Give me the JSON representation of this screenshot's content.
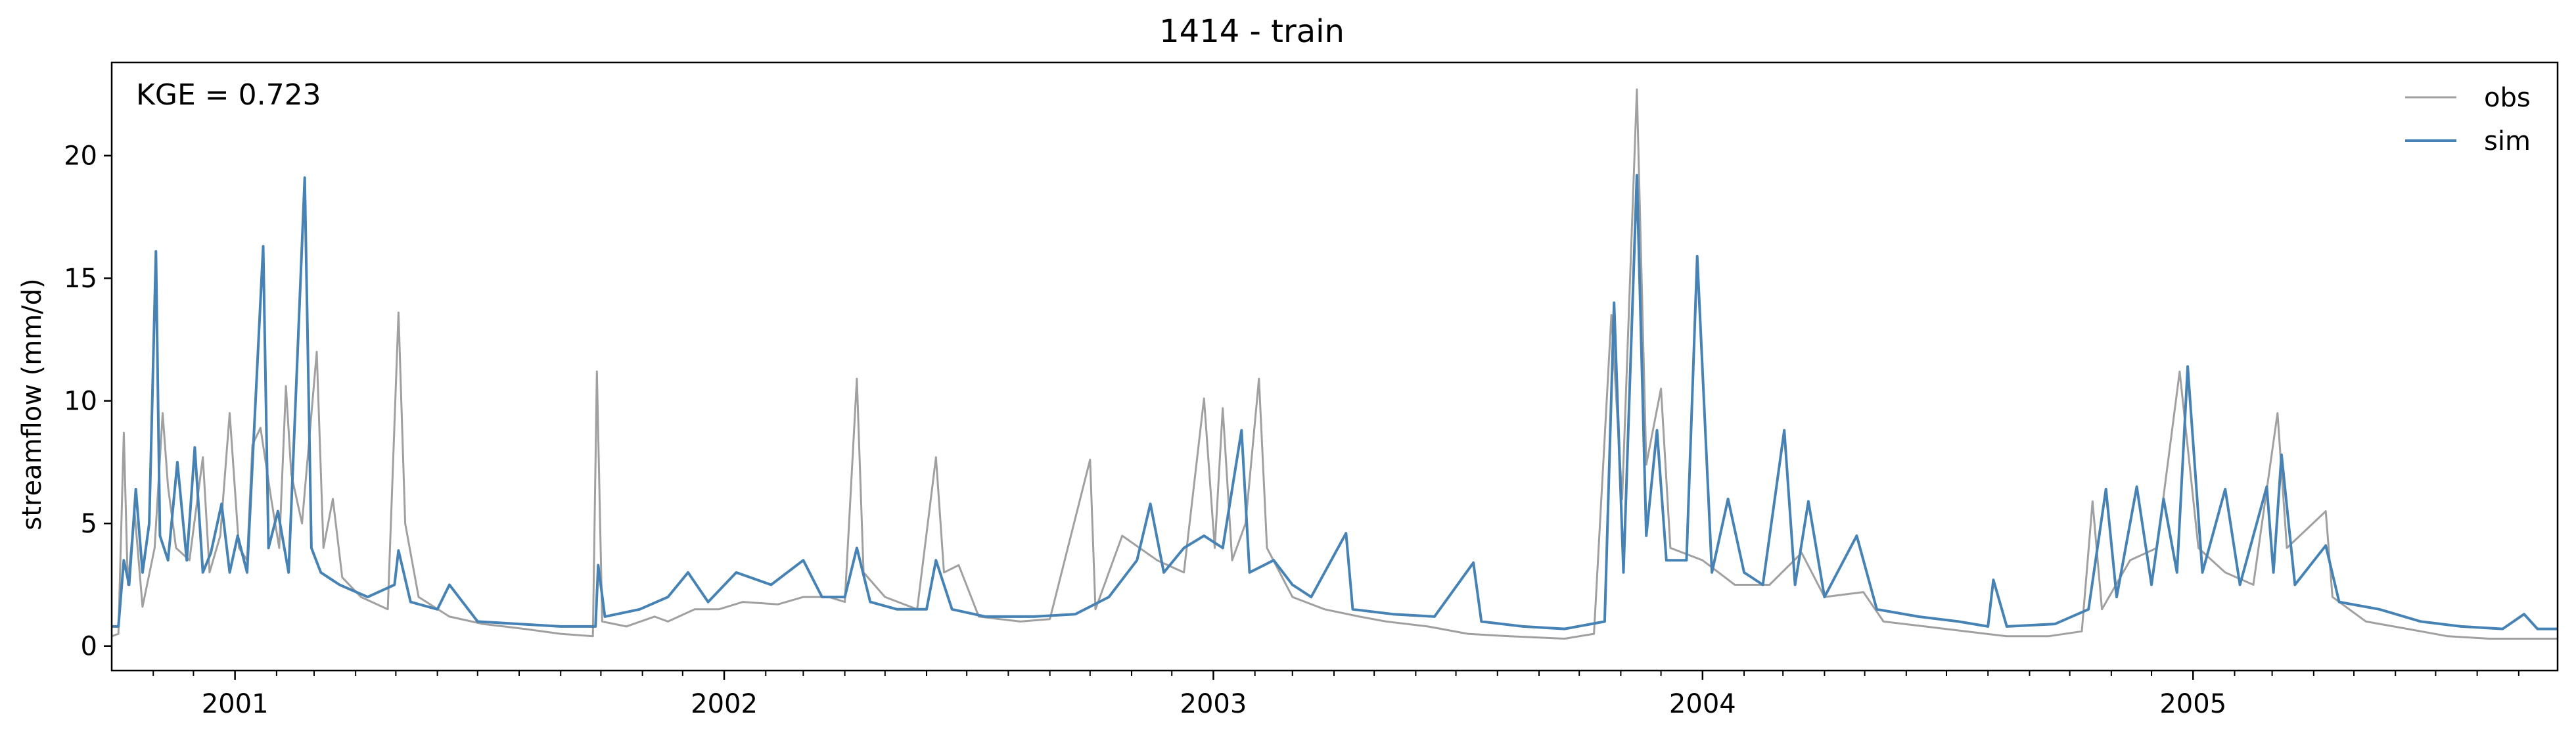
{
  "chart_data": {
    "type": "line",
    "title": "1414 - train",
    "xlabel": "",
    "ylabel": "streamflow (mm/d)",
    "annotation": "KGE = 0.723",
    "x_range": [
      "2000-10-01",
      "2005-09-30"
    ],
    "ylim": [
      -1.0,
      23.8
    ],
    "yticks": [
      0,
      5,
      10,
      15,
      20
    ],
    "xticks": [
      {
        "date": "2001-01-01",
        "label": "2001"
      },
      {
        "date": "2002-01-01",
        "label": "2002"
      },
      {
        "date": "2003-01-01",
        "label": "2003"
      },
      {
        "date": "2004-01-01",
        "label": "2004"
      },
      {
        "date": "2005-01-01",
        "label": "2005"
      }
    ],
    "grid": false,
    "legend_position": "top-right",
    "series": [
      {
        "name": "obs",
        "color": "#a0a0a0",
        "points": [
          [
            "2000-10-01",
            0.4
          ],
          [
            "2000-10-06",
            0.5
          ],
          [
            "2000-10-10",
            8.7
          ],
          [
            "2000-10-13",
            2.5
          ],
          [
            "2000-10-18",
            5.5
          ],
          [
            "2000-10-24",
            1.6
          ],
          [
            "2000-11-02",
            4.0
          ],
          [
            "2000-11-08",
            9.5
          ],
          [
            "2000-11-12",
            6.5
          ],
          [
            "2000-11-18",
            4.0
          ],
          [
            "2000-11-28",
            3.5
          ],
          [
            "2000-12-08",
            7.7
          ],
          [
            "2000-12-13",
            3.0
          ],
          [
            "2000-12-21",
            4.5
          ],
          [
            "2000-12-28",
            9.5
          ],
          [
            "2001-01-04",
            4.0
          ],
          [
            "2001-01-10",
            3.5
          ],
          [
            "2001-01-14",
            8.2
          ],
          [
            "2001-01-20",
            8.9
          ],
          [
            "2001-01-28",
            6.0
          ],
          [
            "2001-02-03",
            4.0
          ],
          [
            "2001-02-08",
            10.6
          ],
          [
            "2001-02-12",
            7.0
          ],
          [
            "2001-02-20",
            5.0
          ],
          [
            "2001-03-03",
            12.0
          ],
          [
            "2001-03-08",
            4.0
          ],
          [
            "2001-03-15",
            6.0
          ],
          [
            "2001-03-22",
            2.8
          ],
          [
            "2001-04-05",
            2.0
          ],
          [
            "2001-04-25",
            1.5
          ],
          [
            "2001-05-03",
            13.6
          ],
          [
            "2001-05-08",
            5.0
          ],
          [
            "2001-05-18",
            2.0
          ],
          [
            "2001-06-10",
            1.2
          ],
          [
            "2001-07-05",
            0.9
          ],
          [
            "2001-08-05",
            0.7
          ],
          [
            "2001-09-01",
            0.5
          ],
          [
            "2001-09-25",
            0.4
          ],
          [
            "2001-09-28",
            11.2
          ],
          [
            "2001-10-02",
            1.0
          ],
          [
            "2001-10-20",
            0.8
          ],
          [
            "2001-11-10",
            1.2
          ],
          [
            "2001-11-20",
            1.0
          ],
          [
            "2001-12-10",
            1.5
          ],
          [
            "2001-12-28",
            1.5
          ],
          [
            "2002-01-15",
            1.8
          ],
          [
            "2002-02-10",
            1.7
          ],
          [
            "2002-03-01",
            2.0
          ],
          [
            "2002-03-20",
            2.0
          ],
          [
            "2002-04-01",
            1.8
          ],
          [
            "2002-04-10",
            10.9
          ],
          [
            "2002-04-15",
            3.0
          ],
          [
            "2002-05-01",
            2.0
          ],
          [
            "2002-05-25",
            1.5
          ],
          [
            "2002-06-08",
            7.7
          ],
          [
            "2002-06-14",
            3.0
          ],
          [
            "2002-06-25",
            3.3
          ],
          [
            "2002-07-10",
            1.2
          ],
          [
            "2002-08-10",
            1.0
          ],
          [
            "2002-09-01",
            1.1
          ],
          [
            "2002-10-01",
            7.6
          ],
          [
            "2002-10-05",
            1.5
          ],
          [
            "2002-10-25",
            4.5
          ],
          [
            "2002-11-20",
            3.5
          ],
          [
            "2002-12-10",
            3.0
          ],
          [
            "2002-12-25",
            10.1
          ],
          [
            "2003-01-02",
            4.0
          ],
          [
            "2003-01-08",
            9.7
          ],
          [
            "2003-01-15",
            3.5
          ],
          [
            "2003-01-25",
            5.0
          ],
          [
            "2003-02-04",
            10.9
          ],
          [
            "2003-02-10",
            4.0
          ],
          [
            "2003-03-01",
            2.0
          ],
          [
            "2003-03-25",
            1.5
          ],
          [
            "2003-04-20",
            1.2
          ],
          [
            "2003-05-10",
            1.0
          ],
          [
            "2003-06-10",
            0.8
          ],
          [
            "2003-07-10",
            0.5
          ],
          [
            "2003-08-10",
            0.4
          ],
          [
            "2003-09-20",
            0.3
          ],
          [
            "2003-10-12",
            0.5
          ],
          [
            "2003-10-25",
            13.5
          ],
          [
            "2003-11-02",
            6.0
          ],
          [
            "2003-11-13",
            22.7
          ],
          [
            "2003-11-20",
            7.4
          ],
          [
            "2003-12-01",
            10.5
          ],
          [
            "2003-12-08",
            4.0
          ],
          [
            "2004-01-01",
            3.5
          ],
          [
            "2004-01-25",
            2.5
          ],
          [
            "2004-02-20",
            2.5
          ],
          [
            "2004-03-15",
            3.8
          ],
          [
            "2004-04-01",
            2.0
          ],
          [
            "2004-04-30",
            2.2
          ],
          [
            "2004-05-15",
            1.0
          ],
          [
            "2004-06-15",
            0.8
          ],
          [
            "2004-07-15",
            0.6
          ],
          [
            "2004-08-15",
            0.4
          ],
          [
            "2004-09-15",
            0.4
          ],
          [
            "2004-10-10",
            0.6
          ],
          [
            "2004-10-18",
            5.9
          ],
          [
            "2004-10-25",
            1.5
          ],
          [
            "2004-11-15",
            3.5
          ],
          [
            "2004-12-05",
            4.0
          ],
          [
            "2004-12-22",
            11.2
          ],
          [
            "2005-01-05",
            4.0
          ],
          [
            "2005-01-25",
            3.0
          ],
          [
            "2005-02-15",
            2.5
          ],
          [
            "2005-03-05",
            9.5
          ],
          [
            "2005-03-12",
            4.0
          ],
          [
            "2005-04-10",
            5.5
          ],
          [
            "2005-04-15",
            2.0
          ],
          [
            "2005-05-10",
            1.0
          ],
          [
            "2005-06-10",
            0.7
          ],
          [
            "2005-07-10",
            0.4
          ],
          [
            "2005-08-10",
            0.3
          ],
          [
            "2005-09-10",
            0.3
          ],
          [
            "2005-09-30",
            0.3
          ]
        ]
      },
      {
        "name": "sim",
        "color": "#4682b4",
        "points": [
          [
            "2000-10-01",
            0.8
          ],
          [
            "2000-10-06",
            0.8
          ],
          [
            "2000-10-10",
            3.5
          ],
          [
            "2000-10-14",
            2.5
          ],
          [
            "2000-10-19",
            6.4
          ],
          [
            "2000-10-24",
            3.0
          ],
          [
            "2000-10-29",
            5.0
          ],
          [
            "2000-11-03",
            16.1
          ],
          [
            "2000-11-06",
            4.5
          ],
          [
            "2000-11-12",
            3.5
          ],
          [
            "2000-11-19",
            7.5
          ],
          [
            "2000-11-26",
            3.5
          ],
          [
            "2000-12-02",
            8.1
          ],
          [
            "2000-12-08",
            3.0
          ],
          [
            "2000-12-14",
            3.8
          ],
          [
            "2000-12-22",
            5.8
          ],
          [
            "2000-12-28",
            3.0
          ],
          [
            "2001-01-03",
            4.5
          ],
          [
            "2001-01-10",
            3.0
          ],
          [
            "2001-01-22",
            16.3
          ],
          [
            "2001-01-26",
            4.0
          ],
          [
            "2001-02-02",
            5.5
          ],
          [
            "2001-02-10",
            3.0
          ],
          [
            "2001-02-22",
            19.1
          ],
          [
            "2001-02-27",
            4.0
          ],
          [
            "2001-03-06",
            3.0
          ],
          [
            "2001-03-20",
            2.5
          ],
          [
            "2001-04-10",
            2.0
          ],
          [
            "2001-04-30",
            2.5
          ],
          [
            "2001-05-03",
            3.9
          ],
          [
            "2001-05-12",
            1.8
          ],
          [
            "2001-06-01",
            1.5
          ],
          [
            "2001-06-10",
            2.5
          ],
          [
            "2001-07-01",
            1.0
          ],
          [
            "2001-08-01",
            0.9
          ],
          [
            "2001-09-01",
            0.8
          ],
          [
            "2001-09-27",
            0.8
          ],
          [
            "2001-09-29",
            3.3
          ],
          [
            "2001-10-04",
            1.2
          ],
          [
            "2001-10-30",
            1.5
          ],
          [
            "2001-11-20",
            2.0
          ],
          [
            "2001-12-05",
            3.0
          ],
          [
            "2001-12-20",
            1.8
          ],
          [
            "2002-01-10",
            3.0
          ],
          [
            "2002-02-05",
            2.5
          ],
          [
            "2002-03-01",
            3.5
          ],
          [
            "2002-03-15",
            2.0
          ],
          [
            "2002-04-01",
            2.0
          ],
          [
            "2002-04-10",
            4.0
          ],
          [
            "2002-04-20",
            1.8
          ],
          [
            "2002-05-10",
            1.5
          ],
          [
            "2002-06-01",
            1.5
          ],
          [
            "2002-06-08",
            3.5
          ],
          [
            "2002-06-20",
            1.5
          ],
          [
            "2002-07-15",
            1.2
          ],
          [
            "2002-08-20",
            1.2
          ],
          [
            "2002-09-20",
            1.3
          ],
          [
            "2002-10-15",
            2.0
          ],
          [
            "2002-11-05",
            3.5
          ],
          [
            "2002-11-15",
            5.8
          ],
          [
            "2002-11-25",
            3.0
          ],
          [
            "2002-12-10",
            4.0
          ],
          [
            "2002-12-25",
            4.5
          ],
          [
            "2003-01-08",
            4.0
          ],
          [
            "2003-01-22",
            8.8
          ],
          [
            "2003-01-28",
            3.0
          ],
          [
            "2003-02-15",
            3.5
          ],
          [
            "2003-03-01",
            2.5
          ],
          [
            "2003-03-15",
            2.0
          ],
          [
            "2003-04-10",
            4.6
          ],
          [
            "2003-04-15",
            1.5
          ],
          [
            "2003-05-15",
            1.3
          ],
          [
            "2003-06-15",
            1.2
          ],
          [
            "2003-07-14",
            3.4
          ],
          [
            "2003-07-20",
            1.0
          ],
          [
            "2003-08-20",
            0.8
          ],
          [
            "2003-09-20",
            0.7
          ],
          [
            "2003-10-20",
            1.0
          ],
          [
            "2003-10-27",
            14.0
          ],
          [
            "2003-11-03",
            3.0
          ],
          [
            "2003-11-13",
            19.2
          ],
          [
            "2003-11-20",
            4.5
          ],
          [
            "2003-11-28",
            8.8
          ],
          [
            "2003-12-05",
            3.5
          ],
          [
            "2003-12-20",
            3.5
          ],
          [
            "2003-12-28",
            15.9
          ],
          [
            "2004-01-08",
            3.0
          ],
          [
            "2004-01-20",
            6.0
          ],
          [
            "2004-02-01",
            3.0
          ],
          [
            "2004-02-15",
            2.5
          ],
          [
            "2004-03-02",
            8.8
          ],
          [
            "2004-03-10",
            2.5
          ],
          [
            "2004-03-20",
            5.9
          ],
          [
            "2004-04-01",
            2.0
          ],
          [
            "2004-04-25",
            4.5
          ],
          [
            "2004-05-10",
            1.5
          ],
          [
            "2004-06-10",
            1.2
          ],
          [
            "2004-07-10",
            1.0
          ],
          [
            "2004-08-01",
            0.8
          ],
          [
            "2004-08-05",
            2.7
          ],
          [
            "2004-08-15",
            0.8
          ],
          [
            "2004-09-20",
            0.9
          ],
          [
            "2004-10-15",
            1.5
          ],
          [
            "2004-10-28",
            6.4
          ],
          [
            "2004-11-05",
            2.0
          ],
          [
            "2004-11-20",
            6.5
          ],
          [
            "2004-12-01",
            2.5
          ],
          [
            "2004-12-10",
            6.0
          ],
          [
            "2004-12-20",
            3.0
          ],
          [
            "2004-12-28",
            11.4
          ],
          [
            "2005-01-08",
            3.0
          ],
          [
            "2005-01-25",
            6.4
          ],
          [
            "2005-02-05",
            2.5
          ],
          [
            "2005-02-25",
            6.5
          ],
          [
            "2005-03-02",
            3.0
          ],
          [
            "2005-03-08",
            7.8
          ],
          [
            "2005-03-18",
            2.5
          ],
          [
            "2005-04-10",
            4.1
          ],
          [
            "2005-04-20",
            1.8
          ],
          [
            "2005-05-20",
            1.5
          ],
          [
            "2005-06-20",
            1.0
          ],
          [
            "2005-07-20",
            0.8
          ],
          [
            "2005-08-20",
            0.7
          ],
          [
            "2005-09-05",
            1.3
          ],
          [
            "2005-09-15",
            0.7
          ],
          [
            "2005-09-30",
            0.7
          ]
        ]
      }
    ]
  }
}
